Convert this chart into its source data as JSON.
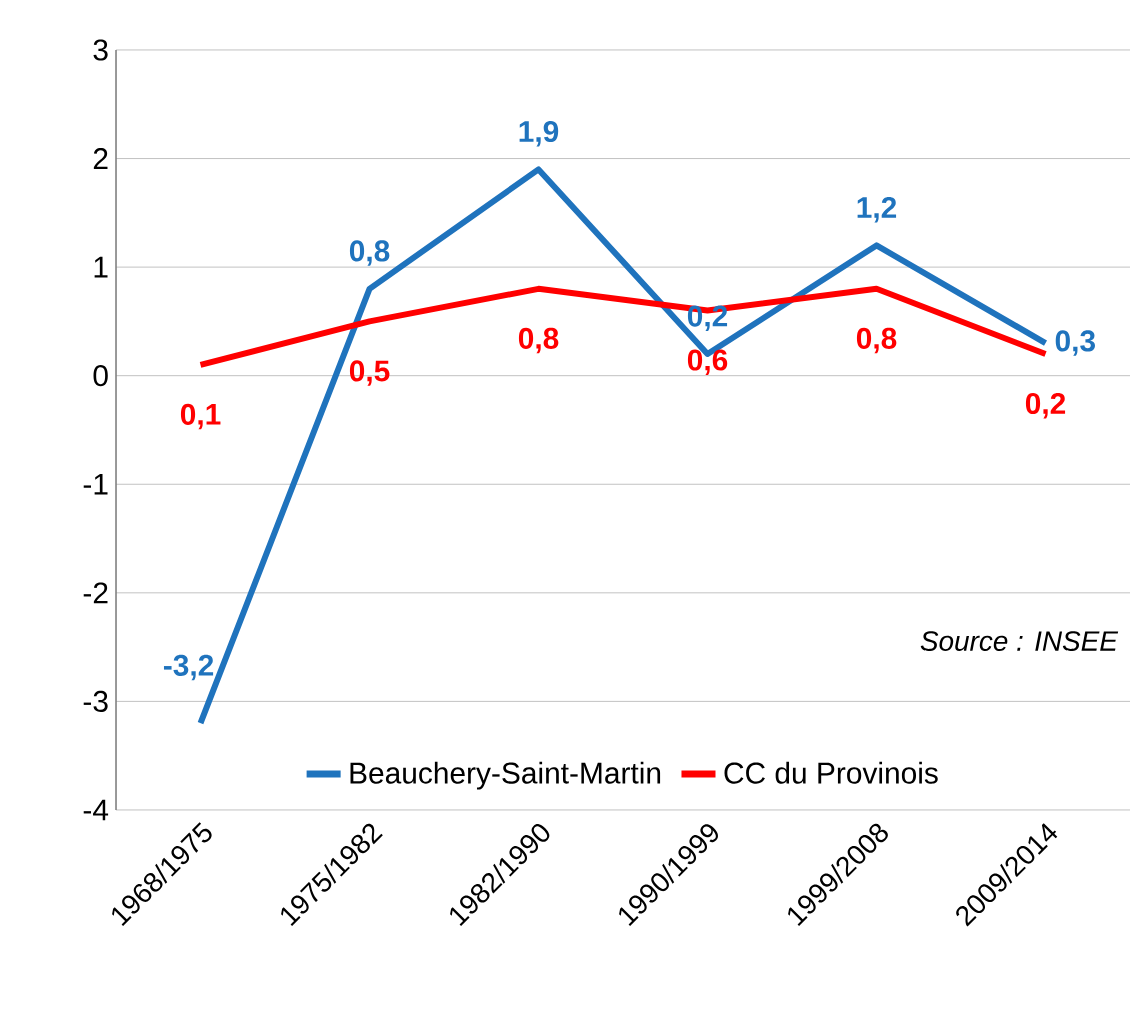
{
  "chart_data": {
    "type": "line",
    "categories": [
      "1968/1975",
      "1975/1982",
      "1982/1990",
      "1990/1999",
      "1999/2008",
      "2009/2014"
    ],
    "series": [
      {
        "name": "Beauchery-Saint-Martin",
        "color": "#1f73bd",
        "values": [
          -3.2,
          0.8,
          1.9,
          0.2,
          1.2,
          0.3
        ],
        "value_labels": [
          "-3,2",
          "0,8",
          "1,9",
          "0,2",
          "1,2",
          "0,3"
        ]
      },
      {
        "name": "CC du Provinois",
        "color": "#ff0000",
        "values": [
          0.1,
          0.5,
          0.8,
          0.6,
          0.8,
          0.2
        ],
        "value_labels": [
          "0,1",
          "0,5",
          "0,8",
          "0,6",
          "0,8",
          "0,2"
        ]
      }
    ],
    "ylim": [
      -4,
      3
    ],
    "yticks": [
      -4,
      -3,
      -2,
      -1,
      0,
      1,
      2,
      3
    ],
    "grid": "y",
    "legend": "bottom",
    "marker": "none",
    "line_style": "solid",
    "annotations": [
      "Source : INSEE"
    ]
  }
}
